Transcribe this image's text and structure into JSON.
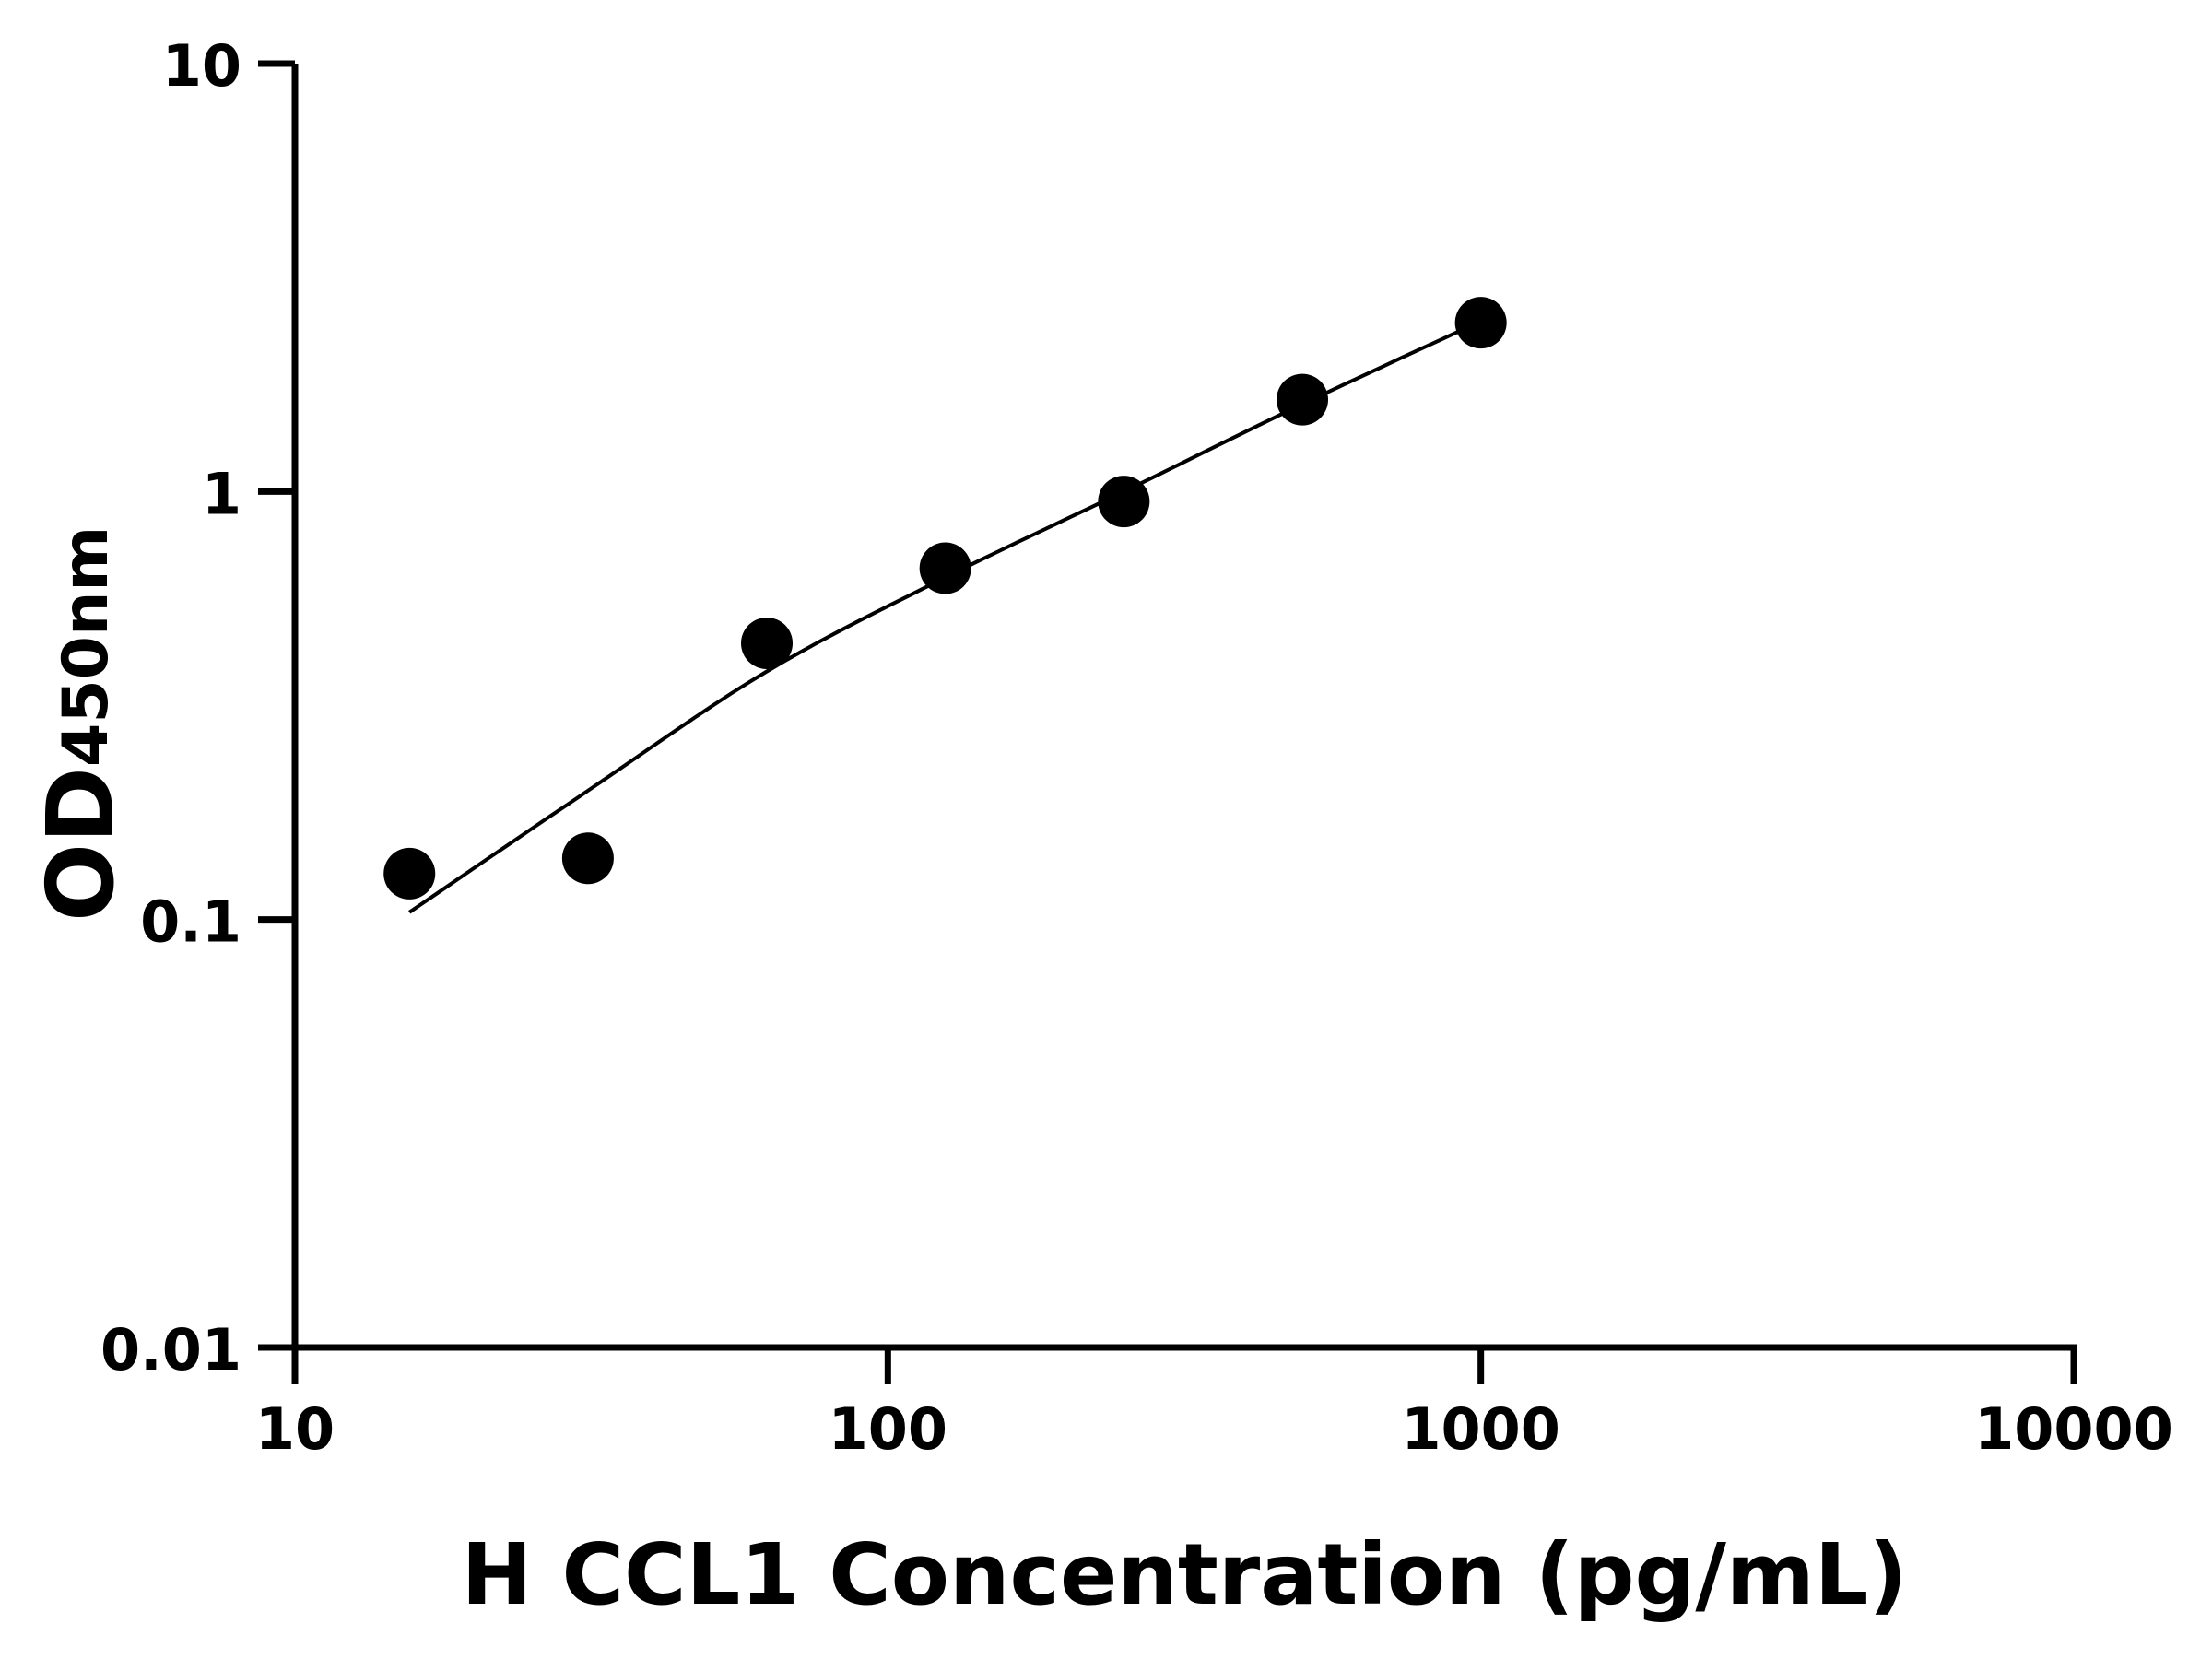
{
  "chart_data": {
    "type": "scatter",
    "title": "",
    "xlabel": "H CCL1 Concentration (pg/mL)",
    "ylabel_main": "OD",
    "ylabel_sub": "450nm",
    "x_scale": "log",
    "y_scale": "log",
    "xlim": [
      10,
      10000
    ],
    "ylim": [
      0.01,
      10
    ],
    "x_ticks": [
      10,
      100,
      1000,
      10000
    ],
    "x_tick_labels": [
      "10",
      "100",
      "1000",
      "10000"
    ],
    "y_ticks": [
      0.01,
      0.1,
      1,
      10
    ],
    "y_tick_labels": [
      "0.01",
      "0.1",
      "1",
      "10"
    ],
    "grid": false,
    "legend": "none",
    "series": [
      {
        "kind": "points",
        "x": [
          15.6,
          31.2,
          62.5,
          125,
          250,
          500,
          1000
        ],
        "y": [
          0.128,
          0.139,
          0.442,
          0.662,
          0.948,
          1.64,
          2.48
        ],
        "color": "#000000"
      },
      {
        "kind": "fit-curve",
        "x": [
          15.6,
          31.2,
          62.5,
          125,
          250,
          500,
          1000
        ],
        "y": [
          0.104,
          0.2,
          0.38,
          0.63,
          1.0,
          1.6,
          2.5
        ],
        "color": "#000000"
      }
    ]
  }
}
